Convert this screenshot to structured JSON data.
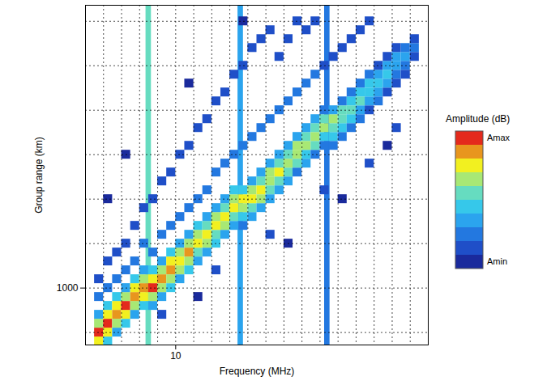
{
  "chart_data": {
    "type": "heatmap",
    "x_label": "Frequency (MHz)",
    "y_label": "Group range (km)",
    "xlim": [
      5,
      24
    ],
    "ylim": [
      360,
      4180
    ],
    "xticks": [
      10
    ],
    "yticks": [
      1000
    ],
    "grid": true,
    "legend": "right",
    "cell_size": [
      0.5,
      100
    ],
    "interference": {
      "width": 0.3,
      "bands": [
        [
          8.5,
          6
        ],
        [
          13.6,
          4
        ],
        [
          18.4,
          3
        ]
      ]
    },
    "cells": [
      [
        5.75,
        400,
        8
      ],
      [
        5.75,
        500,
        10
      ],
      [
        5.75,
        600,
        7
      ],
      [
        5.75,
        700,
        4
      ],
      [
        5.75,
        900,
        3
      ],
      [
        5.75,
        1100,
        2
      ],
      [
        6.25,
        400,
        5
      ],
      [
        6.25,
        500,
        8
      ],
      [
        6.25,
        600,
        10
      ],
      [
        6.25,
        700,
        8
      ],
      [
        6.25,
        800,
        5
      ],
      [
        6.25,
        1000,
        3
      ],
      [
        6.25,
        1300,
        2
      ],
      [
        6.75,
        500,
        4
      ],
      [
        6.75,
        600,
        7
      ],
      [
        6.75,
        700,
        9
      ],
      [
        6.75,
        800,
        8
      ],
      [
        6.75,
        900,
        5
      ],
      [
        6.75,
        1100,
        3
      ],
      [
        6.75,
        1400,
        2
      ],
      [
        7.25,
        600,
        5
      ],
      [
        7.25,
        700,
        8
      ],
      [
        7.25,
        800,
        10
      ],
      [
        7.25,
        900,
        7
      ],
      [
        7.25,
        1000,
        4
      ],
      [
        7.25,
        1200,
        3
      ],
      [
        7.25,
        1500,
        2
      ],
      [
        7.75,
        700,
        4
      ],
      [
        7.75,
        800,
        7
      ],
      [
        7.75,
        900,
        9
      ],
      [
        7.75,
        1000,
        8
      ],
      [
        7.75,
        1100,
        5
      ],
      [
        7.75,
        1300,
        3
      ],
      [
        7.75,
        1700,
        2
      ],
      [
        8.25,
        800,
        5
      ],
      [
        8.25,
        900,
        8
      ],
      [
        8.25,
        1000,
        9
      ],
      [
        8.25,
        1100,
        7
      ],
      [
        8.25,
        1200,
        4
      ],
      [
        8.25,
        1500,
        3
      ],
      [
        8.25,
        1900,
        2
      ],
      [
        8.75,
        800,
        4
      ],
      [
        8.75,
        900,
        7
      ],
      [
        8.75,
        1000,
        10
      ],
      [
        8.75,
        1100,
        8
      ],
      [
        8.75,
        1200,
        5
      ],
      [
        8.75,
        1400,
        3
      ],
      [
        8.75,
        2000,
        2
      ],
      [
        9.25,
        900,
        4
      ],
      [
        9.25,
        1000,
        7
      ],
      [
        9.25,
        1100,
        9
      ],
      [
        9.25,
        1200,
        7
      ],
      [
        9.25,
        1300,
        4
      ],
      [
        9.25,
        1600,
        3
      ],
      [
        9.25,
        2200,
        2
      ],
      [
        9.75,
        1000,
        5
      ],
      [
        9.75,
        1100,
        7
      ],
      [
        9.75,
        1200,
        9
      ],
      [
        9.75,
        1300,
        8
      ],
      [
        9.75,
        1400,
        5
      ],
      [
        9.75,
        1700,
        3
      ],
      [
        9.75,
        2300,
        2
      ],
      [
        10.25,
        1100,
        4
      ],
      [
        10.25,
        1200,
        7
      ],
      [
        10.25,
        1300,
        8
      ],
      [
        10.25,
        1400,
        7
      ],
      [
        10.25,
        1500,
        4
      ],
      [
        10.25,
        1800,
        3
      ],
      [
        10.25,
        2500,
        2
      ],
      [
        10.75,
        1200,
        5
      ],
      [
        10.75,
        1300,
        7
      ],
      [
        10.75,
        1400,
        9
      ],
      [
        10.75,
        1500,
        7
      ],
      [
        10.75,
        1600,
        4
      ],
      [
        10.75,
        1900,
        3
      ],
      [
        10.75,
        2600,
        2
      ],
      [
        11.25,
        1300,
        4
      ],
      [
        11.25,
        1400,
        6
      ],
      [
        11.25,
        1500,
        8
      ],
      [
        11.25,
        1600,
        7
      ],
      [
        11.25,
        1700,
        5
      ],
      [
        11.25,
        2000,
        3
      ],
      [
        11.25,
        2800,
        2
      ],
      [
        11.75,
        1400,
        4
      ],
      [
        11.75,
        1500,
        7
      ],
      [
        11.75,
        1600,
        8
      ],
      [
        11.75,
        1700,
        6
      ],
      [
        11.75,
        1800,
        4
      ],
      [
        11.75,
        2100,
        3
      ],
      [
        11.75,
        2900,
        2
      ],
      [
        12.25,
        1500,
        5
      ],
      [
        12.25,
        1600,
        6
      ],
      [
        12.25,
        1700,
        8
      ],
      [
        12.25,
        1800,
        7
      ],
      [
        12.25,
        1900,
        4
      ],
      [
        12.25,
        2300,
        3
      ],
      [
        12.25,
        3100,
        2
      ],
      [
        12.75,
        1600,
        4
      ],
      [
        12.75,
        1700,
        7
      ],
      [
        12.75,
        1800,
        8
      ],
      [
        12.75,
        1900,
        6
      ],
      [
        12.75,
        2000,
        4
      ],
      [
        12.75,
        2400,
        3
      ],
      [
        12.75,
        3200,
        2
      ],
      [
        13.25,
        1700,
        4
      ],
      [
        13.25,
        1800,
        6
      ],
      [
        13.25,
        1900,
        8
      ],
      [
        13.25,
        2000,
        7
      ],
      [
        13.25,
        2100,
        5
      ],
      [
        13.25,
        2500,
        3
      ],
      [
        13.25,
        3400,
        2
      ],
      [
        13.75,
        1700,
        3
      ],
      [
        13.75,
        1800,
        5
      ],
      [
        13.75,
        1900,
        7
      ],
      [
        13.75,
        2000,
        8
      ],
      [
        13.75,
        2100,
        5
      ],
      [
        13.75,
        2600,
        3
      ],
      [
        13.75,
        3500,
        2
      ],
      [
        14.25,
        1800,
        4
      ],
      [
        14.25,
        1900,
        6
      ],
      [
        14.25,
        2000,
        8
      ],
      [
        14.25,
        2100,
        7
      ],
      [
        14.25,
        2200,
        4
      ],
      [
        14.25,
        2700,
        3
      ],
      [
        14.25,
        3700,
        2
      ],
      [
        14.75,
        1900,
        4
      ],
      [
        14.75,
        2000,
        7
      ],
      [
        14.75,
        2100,
        8
      ],
      [
        14.75,
        2200,
        6
      ],
      [
        14.75,
        2300,
        4
      ],
      [
        14.75,
        2800,
        3
      ],
      [
        14.75,
        3800,
        2
      ],
      [
        15.25,
        2000,
        4
      ],
      [
        15.25,
        2100,
        6
      ],
      [
        15.25,
        2200,
        7
      ],
      [
        15.25,
        2300,
        7
      ],
      [
        15.25,
        2400,
        4
      ],
      [
        15.25,
        2900,
        3
      ],
      [
        15.25,
        3900,
        2
      ],
      [
        15.75,
        2100,
        4
      ],
      [
        15.75,
        2200,
        6
      ],
      [
        15.75,
        2300,
        8
      ],
      [
        15.75,
        2400,
        6
      ],
      [
        15.75,
        2500,
        4
      ],
      [
        15.75,
        3000,
        3
      ],
      [
        15.75,
        3600,
        2
      ],
      [
        16.25,
        2200,
        4
      ],
      [
        16.25,
        2300,
        6
      ],
      [
        16.25,
        2400,
        7
      ],
      [
        16.25,
        2500,
        6
      ],
      [
        16.25,
        2600,
        4
      ],
      [
        16.25,
        3100,
        3
      ],
      [
        16.25,
        3800,
        2
      ],
      [
        16.75,
        2300,
        3
      ],
      [
        16.75,
        2400,
        6
      ],
      [
        16.75,
        2500,
        7
      ],
      [
        16.75,
        2600,
        7
      ],
      [
        16.75,
        2700,
        4
      ],
      [
        16.75,
        3200,
        3
      ],
      [
        16.75,
        4000,
        2
      ],
      [
        17.25,
        2400,
        4
      ],
      [
        17.25,
        2500,
        5
      ],
      [
        17.25,
        2600,
        7
      ],
      [
        17.25,
        2700,
        6
      ],
      [
        17.25,
        2800,
        4
      ],
      [
        17.25,
        3300,
        3
      ],
      [
        17.25,
        3900,
        2
      ],
      [
        17.75,
        2500,
        3
      ],
      [
        17.75,
        2600,
        6
      ],
      [
        17.75,
        2700,
        7
      ],
      [
        17.75,
        2800,
        6
      ],
      [
        17.75,
        2900,
        4
      ],
      [
        17.75,
        3400,
        3
      ],
      [
        17.75,
        4000,
        2
      ],
      [
        18.25,
        2600,
        3
      ],
      [
        18.25,
        2700,
        5
      ],
      [
        18.25,
        2800,
        7
      ],
      [
        18.25,
        2900,
        6
      ],
      [
        18.25,
        3000,
        3
      ],
      [
        18.25,
        3500,
        2
      ],
      [
        18.75,
        2600,
        3
      ],
      [
        18.75,
        2700,
        5
      ],
      [
        18.75,
        2800,
        6
      ],
      [
        18.75,
        2900,
        7
      ],
      [
        18.75,
        3000,
        4
      ],
      [
        18.75,
        3600,
        2
      ],
      [
        19.25,
        2700,
        3
      ],
      [
        19.25,
        2800,
        5
      ],
      [
        19.25,
        2900,
        6
      ],
      [
        19.25,
        3000,
        6
      ],
      [
        19.25,
        3100,
        3
      ],
      [
        19.25,
        3700,
        2
      ],
      [
        19.75,
        2800,
        3
      ],
      [
        19.75,
        2900,
        5
      ],
      [
        19.75,
        3000,
        6
      ],
      [
        19.75,
        3100,
        5
      ],
      [
        19.75,
        3200,
        3
      ],
      [
        19.75,
        3800,
        2
      ],
      [
        20.25,
        2900,
        3
      ],
      [
        20.25,
        3000,
        4
      ],
      [
        20.25,
        3100,
        6
      ],
      [
        20.25,
        3200,
        5
      ],
      [
        20.25,
        3300,
        3
      ],
      [
        20.25,
        3900,
        2
      ],
      [
        20.75,
        3000,
        2
      ],
      [
        20.75,
        3100,
        4
      ],
      [
        20.75,
        3200,
        5
      ],
      [
        20.75,
        3300,
        5
      ],
      [
        20.75,
        3400,
        3
      ],
      [
        20.75,
        4000,
        2
      ],
      [
        21.25,
        3100,
        3
      ],
      [
        21.25,
        3200,
        4
      ],
      [
        21.25,
        3300,
        5
      ],
      [
        21.25,
        3400,
        4
      ],
      [
        21.25,
        3500,
        2
      ],
      [
        21.75,
        3200,
        2
      ],
      [
        21.75,
        3300,
        4
      ],
      [
        21.75,
        3400,
        5
      ],
      [
        21.75,
        3500,
        4
      ],
      [
        21.75,
        3600,
        2
      ],
      [
        22.25,
        3300,
        2
      ],
      [
        22.25,
        3400,
        3
      ],
      [
        22.25,
        3500,
        4
      ],
      [
        22.25,
        3600,
        4
      ],
      [
        22.25,
        3700,
        2
      ],
      [
        22.75,
        3400,
        2
      ],
      [
        22.75,
        3500,
        3
      ],
      [
        22.75,
        3600,
        4
      ],
      [
        22.75,
        3700,
        3
      ],
      [
        23.25,
        3600,
        2
      ],
      [
        23.25,
        3700,
        3
      ],
      [
        23.25,
        3800,
        2
      ],
      [
        9.25,
        700,
        2
      ],
      [
        12.25,
        1200,
        2
      ],
      [
        15.25,
        1600,
        2
      ],
      [
        18.25,
        2100,
        2
      ],
      [
        20.75,
        2400,
        2
      ],
      [
        22.25,
        2800,
        2
      ],
      [
        7.25,
        2500,
        1
      ],
      [
        10.75,
        3300,
        1
      ],
      [
        13.75,
        4000,
        1
      ],
      [
        16.25,
        1500,
        1
      ],
      [
        19.25,
        2000,
        1
      ],
      [
        21.75,
        2600,
        1
      ],
      [
        11.25,
        900,
        1
      ],
      [
        6.25,
        2000,
        1
      ]
    ],
    "colorbar": {
      "title": "Amplitude (dB)",
      "range": [
        1,
        10
      ],
      "ticks": [
        {
          "value": 1,
          "label": "Amin"
        },
        {
          "value": 10,
          "label": "Amax"
        }
      ],
      "colors": [
        "#1a2a9c",
        "#1f4fc8",
        "#2378e0",
        "#2ba4ee",
        "#36c8ea",
        "#66dcc0",
        "#a8e874",
        "#f2f020",
        "#e8961e",
        "#e42a1c"
      ]
    }
  }
}
